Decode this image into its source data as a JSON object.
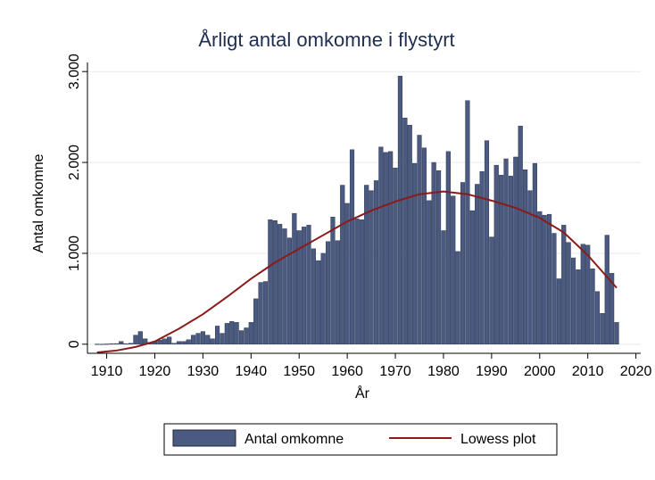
{
  "chart_data": {
    "type": "bar",
    "title": "Årligt antal omkomne i flystyrt",
    "xlabel": "År",
    "ylabel": "Antal omkomne",
    "xlim": [
      1906,
      2021
    ],
    "ylim": [
      -100,
      3100
    ],
    "x_ticks": [
      1910,
      1920,
      1930,
      1940,
      1950,
      1960,
      1970,
      1980,
      1990,
      2000,
      2010,
      2020
    ],
    "x_tick_labels": [
      "1910",
      "1920",
      "1930",
      "1940",
      "1950",
      "1960",
      "1970",
      "1980",
      "1990",
      "2000",
      "2010",
      "2020"
    ],
    "y_ticks": [
      0,
      1000,
      2000,
      3000
    ],
    "y_tick_labels": [
      "0",
      "1.000",
      "2.000",
      "3.000"
    ],
    "grid": true,
    "legend_position": "bottom",
    "colors": {
      "bar": "#4a5a80",
      "bar_edge": "#1c2640",
      "lowess": "#8b1a1a",
      "title": "#1e2d52",
      "grid": "#e6eaef"
    },
    "series": [
      {
        "name": "Antal omkomne",
        "type": "bar",
        "x": [
          1908,
          1909,
          1910,
          1911,
          1912,
          1913,
          1914,
          1915,
          1916,
          1917,
          1918,
          1919,
          1920,
          1921,
          1922,
          1923,
          1924,
          1925,
          1926,
          1927,
          1928,
          1929,
          1930,
          1931,
          1932,
          1933,
          1934,
          1935,
          1936,
          1937,
          1938,
          1939,
          1940,
          1941,
          1942,
          1943,
          1944,
          1945,
          1946,
          1947,
          1948,
          1949,
          1950,
          1951,
          1952,
          1953,
          1954,
          1955,
          1956,
          1957,
          1958,
          1959,
          1960,
          1961,
          1962,
          1963,
          1964,
          1965,
          1966,
          1967,
          1968,
          1969,
          1970,
          1971,
          1972,
          1973,
          1974,
          1975,
          1976,
          1977,
          1978,
          1979,
          1980,
          1981,
          1982,
          1983,
          1984,
          1985,
          1986,
          1987,
          1988,
          1989,
          1990,
          1991,
          1992,
          1993,
          1994,
          1995,
          1996,
          1997,
          1998,
          1999,
          2000,
          2001,
          2002,
          2003,
          2004,
          2005,
          2006,
          2007,
          2008,
          2009,
          2010,
          2011,
          2012,
          2013,
          2014,
          2015,
          2016
        ],
        "values": [
          2,
          1,
          3,
          5,
          6,
          30,
          5,
          10,
          100,
          140,
          60,
          20,
          30,
          45,
          60,
          80,
          10,
          30,
          30,
          50,
          100,
          120,
          140,
          100,
          60,
          200,
          120,
          230,
          250,
          240,
          150,
          180,
          240,
          500,
          680,
          690,
          1370,
          1360,
          1320,
          1270,
          1170,
          1440,
          1250,
          1290,
          1310,
          1050,
          920,
          1000,
          1130,
          1400,
          1140,
          1750,
          1550,
          2140,
          1380,
          1370,
          1750,
          1690,
          1800,
          2170,
          2110,
          2120,
          1940,
          2950,
          2490,
          2410,
          1990,
          2300,
          2160,
          1580,
          2000,
          1910,
          1250,
          2120,
          1630,
          1020,
          1780,
          2680,
          1470,
          1760,
          1900,
          2240,
          1180,
          1970,
          1860,
          2040,
          1850,
          2060,
          2400,
          1920,
          1690,
          1990,
          1460,
          1420,
          1430,
          1220,
          720,
          1310,
          1120,
          950,
          820,
          1100,
          1090,
          830,
          580,
          340,
          1200,
          780,
          240
        ]
      },
      {
        "name": "Lowess plot",
        "type": "line",
        "x": [
          1908,
          1912,
          1916,
          1920,
          1925,
          1930,
          1935,
          1940,
          1945,
          1950,
          1955,
          1960,
          1965,
          1970,
          1975,
          1980,
          1985,
          1990,
          1995,
          2000,
          2005,
          2010,
          2016
        ],
        "values": [
          -90,
          -70,
          -30,
          30,
          170,
          330,
          520,
          720,
          900,
          1050,
          1200,
          1350,
          1470,
          1570,
          1650,
          1680,
          1650,
          1580,
          1500,
          1390,
          1230,
          980,
          620
        ]
      }
    ]
  }
}
